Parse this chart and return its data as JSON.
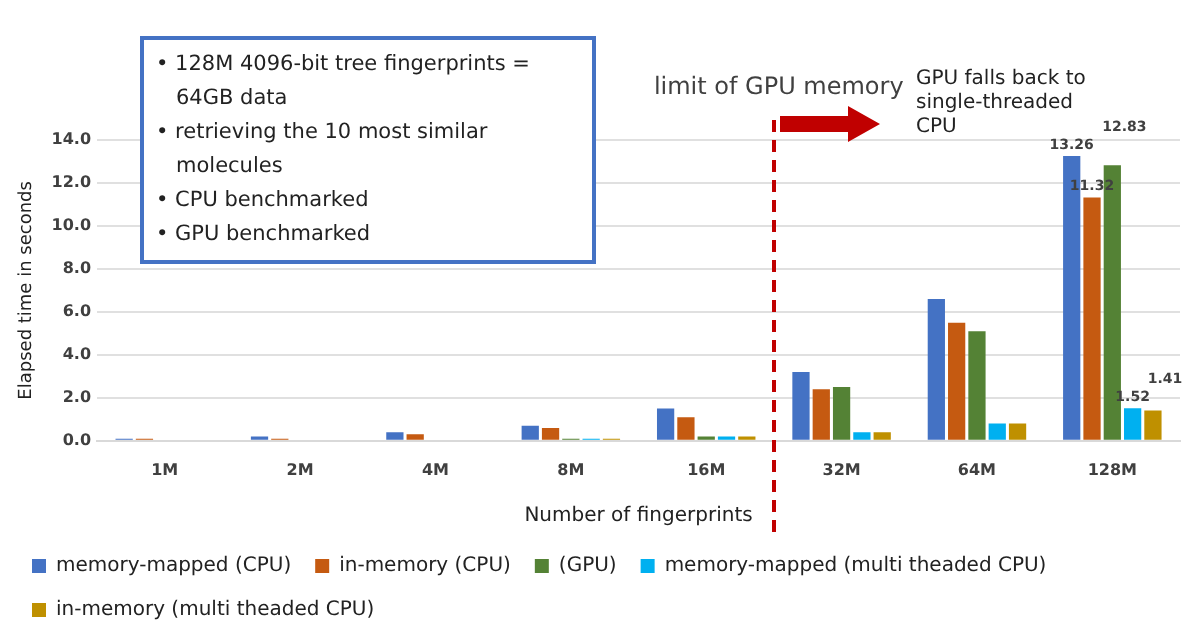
{
  "chart_data": {
    "type": "bar",
    "xlabel": "Number of fingerprints",
    "ylabel": "Elapsed time in seconds",
    "categories": [
      "1M",
      "2M",
      "4M",
      "8M",
      "16M",
      "32M",
      "64M",
      "128M"
    ],
    "series": [
      {
        "name": "memory-mapped (CPU)",
        "color": "#4472c4",
        "values": [
          0.1,
          0.2,
          0.4,
          0.7,
          1.5,
          3.2,
          6.6,
          13.26
        ],
        "value_labels": [
          null,
          null,
          null,
          null,
          null,
          null,
          null,
          "13.26"
        ]
      },
      {
        "name": "in-memory (CPU)",
        "color": "#c55a11",
        "values": [
          0.1,
          0.1,
          0.3,
          0.6,
          1.1,
          2.4,
          5.5,
          11.32
        ],
        "value_labels": [
          null,
          null,
          null,
          null,
          null,
          null,
          null,
          "11.32"
        ]
      },
      {
        "name": "(GPU)",
        "color": "#548235",
        "values": [
          0,
          0,
          0,
          0.1,
          0.2,
          2.5,
          5.1,
          12.83
        ],
        "value_labels": [
          null,
          null,
          null,
          null,
          null,
          null,
          null,
          "12.83"
        ]
      },
      {
        "name": "memory-mapped (multi theaded CPU)",
        "color": "#00b0f0",
        "values": [
          0,
          0,
          0,
          0.1,
          0.2,
          0.4,
          0.8,
          1.52
        ],
        "value_labels": [
          null,
          null,
          null,
          null,
          null,
          null,
          null,
          "1.52"
        ]
      },
      {
        "name": "in-memory (multi theaded CPU)",
        "color": "#bf9000",
        "values": [
          0,
          0,
          0,
          0.1,
          0.2,
          0.4,
          0.8,
          1.41
        ],
        "value_labels": [
          null,
          null,
          null,
          null,
          null,
          null,
          null,
          "1.41"
        ]
      }
    ],
    "ylim": [
      0,
      14
    ],
    "yticks": [
      {
        "value": 0,
        "label": "0.0"
      },
      {
        "value": 2,
        "label": "2.0"
      },
      {
        "value": 4,
        "label": "4.0"
      },
      {
        "value": 6,
        "label": "6.0"
      },
      {
        "value": 8,
        "label": "8.0"
      },
      {
        "value": 10,
        "label": "10.0"
      },
      {
        "value": 12,
        "label": "12.0"
      },
      {
        "value": 14,
        "label": "14.0"
      }
    ],
    "grid": "y",
    "legend": "bottom",
    "annotations": [
      "• 128M 4096-bit tree fingerprints = 64GB data",
      "• retrieving the 10 most similar molecules",
      "• CPU benchmarked",
      "• GPU benchmarked",
      "limit of GPU memory",
      "GPU falls back to single-threaded CPU"
    ]
  }
}
